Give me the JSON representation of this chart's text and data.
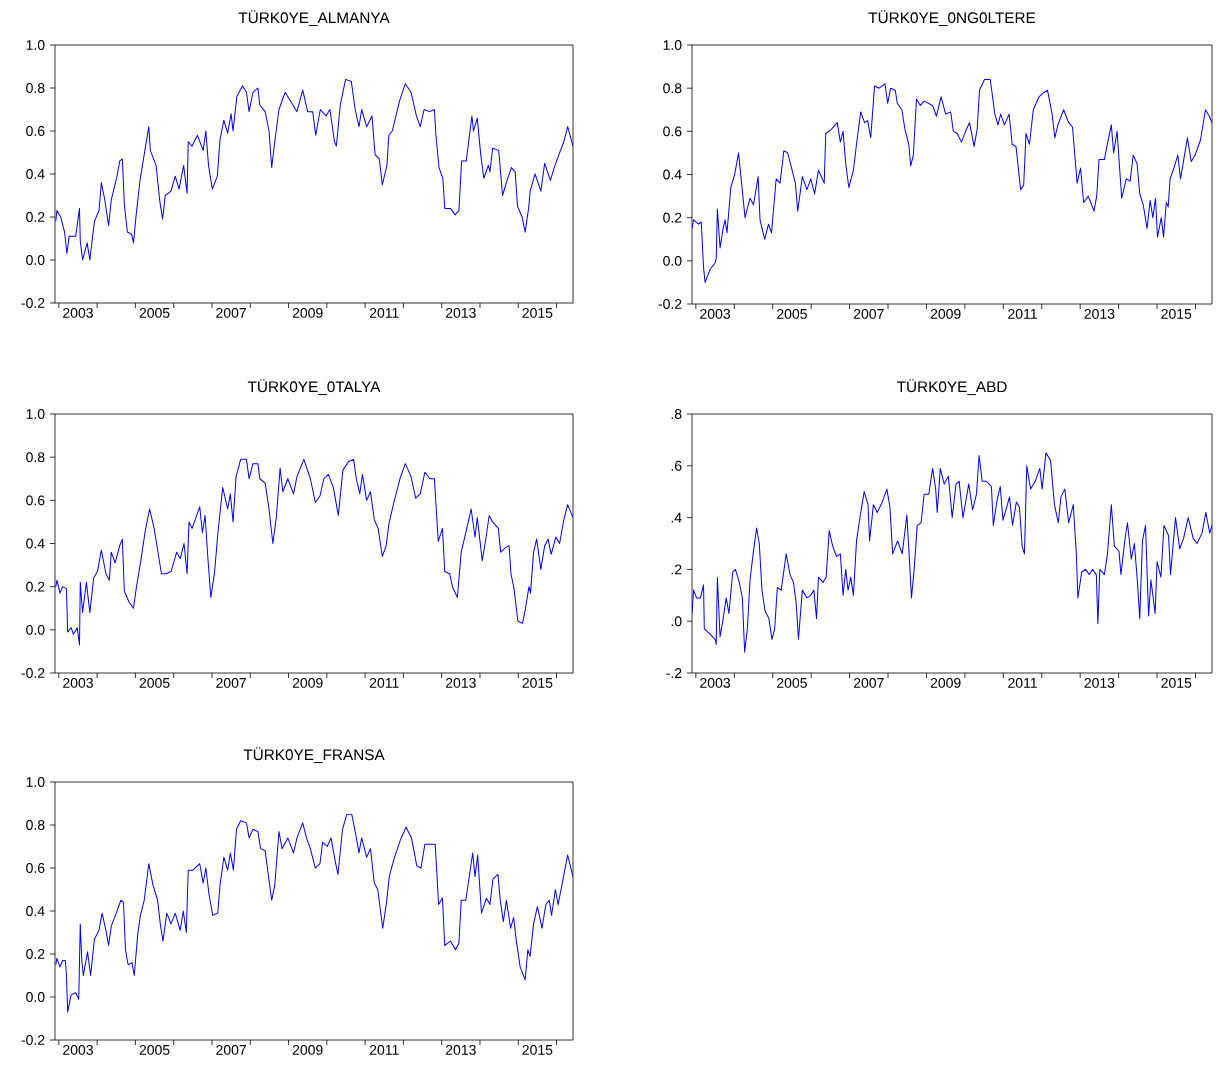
{
  "chart_data": [
    {
      "type": "line",
      "title": "TÜRK0YE_ALMANYA",
      "color": "#0000ff",
      "marker": "none",
      "xlim": [
        2002.9,
        2016.43
      ],
      "ylim": [
        -0.2,
        1.0
      ],
      "xticks": [
        {
          "value": 2003,
          "label": null
        },
        {
          "value": 2003.5,
          "label": "2003"
        },
        {
          "value": 2004,
          "label": null
        },
        {
          "value": 2005,
          "label": null
        },
        {
          "value": 2005.5,
          "label": "2005"
        },
        {
          "value": 2006,
          "label": null
        },
        {
          "value": 2007,
          "label": null
        },
        {
          "value": 2007.5,
          "label": "2007"
        },
        {
          "value": 2008,
          "label": null
        },
        {
          "value": 2009,
          "label": null
        },
        {
          "value": 2009.5,
          "label": "2009"
        },
        {
          "value": 2010,
          "label": null
        },
        {
          "value": 2011,
          "label": null
        },
        {
          "value": 2011.5,
          "label": "2011"
        },
        {
          "value": 2012,
          "label": null
        },
        {
          "value": 2013,
          "label": null
        },
        {
          "value": 2013.5,
          "label": "2013"
        },
        {
          "value": 2014,
          "label": null
        },
        {
          "value": 2015,
          "label": null
        },
        {
          "value": 2015.5,
          "label": "2015"
        },
        {
          "value": 2016,
          "label": null
        }
      ],
      "yticks": [
        {
          "value": -0.2,
          "label": "-0.2"
        },
        {
          "value": 0,
          "label": "0.0"
        },
        {
          "value": 0.2,
          "label": "0.2"
        },
        {
          "value": 0.4,
          "label": "0.4"
        },
        {
          "value": 0.6,
          "label": "0.6"
        },
        {
          "value": 0.8,
          "label": "0.8"
        },
        {
          "value": 1.0,
          "label": "1.0"
        }
      ],
      "x": [
        2002.92,
        2002.95,
        2003.05,
        2003.15,
        2003.21,
        2003.27,
        2003.44,
        2003.54,
        2003.56,
        2003.62,
        2003.74,
        2003.81,
        2003.93,
        2004.05,
        2004.11,
        2004.2,
        2004.3,
        2004.37,
        2004.52,
        2004.59,
        2004.66,
        2004.71,
        2004.79,
        2004.9,
        2004.95,
        2005.02,
        2005.12,
        2005.22,
        2005.35,
        2005.39,
        2005.54,
        2005.64,
        2005.71,
        2005.78,
        2005.93,
        2006.04,
        2006.14,
        2006.26,
        2006.35,
        2006.38,
        2006.48,
        2006.62,
        2006.77,
        2006.84,
        2006.91,
        2007.01,
        2007.14,
        2007.21,
        2007.31,
        2007.41,
        2007.5,
        2007.55,
        2007.65,
        2007.8,
        2007.9,
        2007.97,
        2008.07,
        2008.2,
        2008.25,
        2008.39,
        2008.49,
        2008.56,
        2008.64,
        2008.75,
        2008.91,
        2009.05,
        2009.22,
        2009.37,
        2009.5,
        2009.63,
        2009.71,
        2009.83,
        2009.98,
        2010.08,
        2010.2,
        2010.25,
        2010.35,
        2010.49,
        2010.64,
        2010.74,
        2010.84,
        2010.91,
        2011.04,
        2011.18,
        2011.26,
        2011.37,
        2011.45,
        2011.57,
        2011.62,
        2011.71,
        2011.9,
        2012.05,
        2012.2,
        2012.34,
        2012.44,
        2012.54,
        2012.69,
        2012.81,
        2012.85,
        2012.93,
        2013.03,
        2013.08,
        2013.23,
        2013.35,
        2013.45,
        2013.52,
        2013.64,
        2013.79,
        2013.83,
        2013.93,
        2014.02,
        2014.1,
        2014.22,
        2014.26,
        2014.33,
        2014.49,
        2014.59,
        2014.69,
        2014.82,
        2014.92,
        2014.98,
        2015.1,
        2015.18,
        2015.27,
        2015.31,
        2015.44,
        2015.59,
        2015.69,
        2015.84,
        2015.94,
        2016.04,
        2016.19,
        2016.29,
        2016.43
      ],
      "values": [
        0.18,
        0.23,
        0.2,
        0.13,
        0.03,
        0.11,
        0.11,
        0.24,
        0.09,
        0.0,
        0.08,
        0.0,
        0.18,
        0.23,
        0.36,
        0.28,
        0.16,
        0.28,
        0.39,
        0.46,
        0.47,
        0.26,
        0.13,
        0.12,
        0.08,
        0.21,
        0.37,
        0.48,
        0.62,
        0.51,
        0.44,
        0.27,
        0.19,
        0.3,
        0.32,
        0.39,
        0.33,
        0.44,
        0.31,
        0.55,
        0.53,
        0.58,
        0.51,
        0.6,
        0.44,
        0.33,
        0.39,
        0.56,
        0.65,
        0.59,
        0.68,
        0.6,
        0.76,
        0.81,
        0.78,
        0.69,
        0.78,
        0.8,
        0.72,
        0.69,
        0.6,
        0.43,
        0.55,
        0.7,
        0.78,
        0.74,
        0.69,
        0.79,
        0.69,
        0.69,
        0.58,
        0.7,
        0.67,
        0.7,
        0.55,
        0.53,
        0.72,
        0.84,
        0.83,
        0.7,
        0.62,
        0.7,
        0.62,
        0.67,
        0.49,
        0.47,
        0.35,
        0.44,
        0.58,
        0.6,
        0.74,
        0.82,
        0.78,
        0.67,
        0.62,
        0.7,
        0.69,
        0.7,
        0.58,
        0.43,
        0.38,
        0.24,
        0.24,
        0.21,
        0.23,
        0.46,
        0.46,
        0.67,
        0.6,
        0.66,
        0.49,
        0.38,
        0.44,
        0.41,
        0.52,
        0.51,
        0.3,
        0.36,
        0.43,
        0.41,
        0.25,
        0.2,
        0.13,
        0.24,
        0.32,
        0.4,
        0.32,
        0.45,
        0.37,
        0.43,
        0.48,
        0.55,
        0.62,
        0.53
      ]
    },
    {
      "type": "line",
      "title": "TÜRK0YE_0NG0LTERE",
      "color": "#0000ff",
      "marker": "none",
      "xlim": [
        2002.9,
        2016.43
      ],
      "ylim": [
        -0.2,
        1.0
      ],
      "xticks": [
        {
          "value": 2003,
          "label": null
        },
        {
          "value": 2003.5,
          "label": "2003"
        },
        {
          "value": 2004,
          "label": null
        },
        {
          "value": 2005,
          "label": null
        },
        {
          "value": 2005.5,
          "label": "2005"
        },
        {
          "value": 2006,
          "label": null
        },
        {
          "value": 2007,
          "label": null
        },
        {
          "value": 2007.5,
          "label": "2007"
        },
        {
          "value": 2008,
          "label": null
        },
        {
          "value": 2009,
          "label": null
        },
        {
          "value": 2009.5,
          "label": "2009"
        },
        {
          "value": 2010,
          "label": null
        },
        {
          "value": 2011,
          "label": null
        },
        {
          "value": 2011.5,
          "label": "2011"
        },
        {
          "value": 2012,
          "label": null
        },
        {
          "value": 2013,
          "label": null
        },
        {
          "value": 2013.5,
          "label": "2013"
        },
        {
          "value": 2014,
          "label": null
        },
        {
          "value": 2015,
          "label": null
        },
        {
          "value": 2015.5,
          "label": "2015"
        },
        {
          "value": 2016,
          "label": null
        }
      ],
      "yticks": [
        {
          "value": -0.2,
          "label": "-0.2"
        },
        {
          "value": 0,
          "label": "0.0"
        },
        {
          "value": 0.2,
          "label": "0.2"
        },
        {
          "value": 0.4,
          "label": "0.4"
        },
        {
          "value": 0.6,
          "label": "0.6"
        },
        {
          "value": 0.8,
          "label": "0.8"
        },
        {
          "value": 1.0,
          "label": "1.0"
        }
      ],
      "x": [
        2002.9,
        2002.94,
        2003.07,
        2003.14,
        2003.2,
        2003.24,
        2003.37,
        2003.5,
        2003.53,
        2003.56,
        2003.63,
        2003.71,
        2003.76,
        2003.81,
        2003.91,
        2004.01,
        2004.11,
        2004.19,
        2004.28,
        2004.41,
        2004.5,
        2004.62,
        2004.67,
        2004.79,
        2004.89,
        2004.97,
        2005.09,
        2005.19,
        2005.29,
        2005.39,
        2005.49,
        2005.59,
        2005.65,
        2005.77,
        2005.89,
        2005.99,
        2006.09,
        2006.19,
        2006.34,
        2006.38,
        2006.53,
        2006.68,
        2006.76,
        2006.83,
        2006.9,
        2006.98,
        2007.1,
        2007.18,
        2007.29,
        2007.39,
        2007.47,
        2007.55,
        2007.65,
        2007.77,
        2007.92,
        2007.99,
        2008.07,
        2008.19,
        2008.24,
        2008.36,
        2008.44,
        2008.54,
        2008.59,
        2008.66,
        2008.74,
        2008.84,
        2008.94,
        2009.16,
        2009.26,
        2009.38,
        2009.5,
        2009.63,
        2009.7,
        2009.8,
        2009.91,
        2010.04,
        2010.12,
        2010.24,
        2010.32,
        2010.38,
        2010.51,
        2010.66,
        2010.78,
        2010.86,
        2010.93,
        2011.03,
        2011.15,
        2011.23,
        2011.33,
        2011.45,
        2011.53,
        2011.59,
        2011.68,
        2011.78,
        2011.93,
        2012.05,
        2012.15,
        2012.27,
        2012.34,
        2012.42,
        2012.57,
        2012.7,
        2012.8,
        2012.92,
        2013.01,
        2013.09,
        2013.21,
        2013.36,
        2013.43,
        2013.49,
        2013.63,
        2013.73,
        2013.81,
        2013.87,
        2013.96,
        2014.08,
        2014.2,
        2014.3,
        2014.38,
        2014.48,
        2014.55,
        2014.64,
        2014.74,
        2014.82,
        2014.89,
        2014.96,
        2015.01,
        2015.11,
        2015.17,
        2015.24,
        2015.29,
        2015.34,
        2015.44,
        2015.54,
        2015.61,
        2015.79,
        2015.89,
        2015.99,
        2016.13,
        2016.26,
        2016.36,
        2016.43
      ],
      "values": [
        0.15,
        0.19,
        0.17,
        0.18,
        -0.03,
        -0.1,
        -0.04,
        -0.01,
        0.01,
        0.24,
        0.06,
        0.15,
        0.19,
        0.13,
        0.34,
        0.4,
        0.5,
        0.36,
        0.2,
        0.29,
        0.26,
        0.39,
        0.19,
        0.1,
        0.17,
        0.13,
        0.38,
        0.36,
        0.51,
        0.5,
        0.43,
        0.36,
        0.23,
        0.39,
        0.33,
        0.38,
        0.31,
        0.42,
        0.36,
        0.59,
        0.61,
        0.64,
        0.55,
        0.6,
        0.45,
        0.34,
        0.42,
        0.54,
        0.69,
        0.64,
        0.65,
        0.57,
        0.81,
        0.8,
        0.82,
        0.73,
        0.8,
        0.79,
        0.73,
        0.7,
        0.61,
        0.54,
        0.44,
        0.49,
        0.75,
        0.72,
        0.74,
        0.72,
        0.67,
        0.76,
        0.68,
        0.69,
        0.6,
        0.59,
        0.55,
        0.61,
        0.64,
        0.53,
        0.61,
        0.79,
        0.84,
        0.84,
        0.68,
        0.63,
        0.68,
        0.63,
        0.68,
        0.54,
        0.53,
        0.33,
        0.35,
        0.59,
        0.54,
        0.7,
        0.76,
        0.78,
        0.79,
        0.68,
        0.57,
        0.63,
        0.7,
        0.64,
        0.62,
        0.36,
        0.43,
        0.27,
        0.3,
        0.23,
        0.3,
        0.47,
        0.47,
        0.56,
        0.63,
        0.5,
        0.6,
        0.29,
        0.38,
        0.37,
        0.49,
        0.45,
        0.31,
        0.26,
        0.15,
        0.28,
        0.2,
        0.29,
        0.11,
        0.2,
        0.11,
        0.27,
        0.25,
        0.38,
        0.43,
        0.49,
        0.38,
        0.57,
        0.46,
        0.49,
        0.56,
        0.7,
        0.67,
        0.64
      ]
    },
    {
      "type": "line",
      "title": "TÜRK0YE_0TALYA",
      "color": "#0000ff",
      "marker": "none",
      "xlim": [
        2002.9,
        2016.43
      ],
      "ylim": [
        -0.2,
        1.0
      ],
      "xticks": [
        {
          "value": 2003,
          "label": null
        },
        {
          "value": 2003.5,
          "label": "2003"
        },
        {
          "value": 2004,
          "label": null
        },
        {
          "value": 2005,
          "label": null
        },
        {
          "value": 2005.5,
          "label": "2005"
        },
        {
          "value": 2006,
          "label": null
        },
        {
          "value": 2007,
          "label": null
        },
        {
          "value": 2007.5,
          "label": "2007"
        },
        {
          "value": 2008,
          "label": null
        },
        {
          "value": 2009,
          "label": null
        },
        {
          "value": 2009.5,
          "label": "2009"
        },
        {
          "value": 2010,
          "label": null
        },
        {
          "value": 2011,
          "label": null
        },
        {
          "value": 2011.5,
          "label": "2011"
        },
        {
          "value": 2012,
          "label": null
        },
        {
          "value": 2013,
          "label": null
        },
        {
          "value": 2013.5,
          "label": "2013"
        },
        {
          "value": 2014,
          "label": null
        },
        {
          "value": 2015,
          "label": null
        },
        {
          "value": 2015.5,
          "label": "2015"
        },
        {
          "value": 2016,
          "label": null
        }
      ],
      "yticks": [
        {
          "value": -0.2,
          "label": "-0.2"
        },
        {
          "value": 0,
          "label": "0.0"
        },
        {
          "value": 0.2,
          "label": "0.2"
        },
        {
          "value": 0.4,
          "label": "0.4"
        },
        {
          "value": 0.6,
          "label": "0.6"
        },
        {
          "value": 0.8,
          "label": "0.8"
        },
        {
          "value": 1.0,
          "label": "1.0"
        }
      ],
      "x": [
        2002.92,
        2002.95,
        2003.03,
        2003.1,
        2003.2,
        2003.23,
        2003.32,
        2003.38,
        2003.48,
        2003.54,
        2003.56,
        2003.62,
        2003.72,
        2003.81,
        2003.91,
        2004.01,
        2004.11,
        2004.23,
        2004.32,
        2004.37,
        2004.47,
        2004.59,
        2004.66,
        2004.71,
        2004.83,
        2004.95,
        2005.02,
        2005.15,
        2005.25,
        2005.37,
        2005.49,
        2005.58,
        2005.68,
        2005.8,
        2005.93,
        2006.08,
        2006.17,
        2006.27,
        2006.35,
        2006.4,
        2006.48,
        2006.58,
        2006.68,
        2006.75,
        2006.82,
        2006.89,
        2006.97,
        2007.07,
        2007.15,
        2007.28,
        2007.41,
        2007.48,
        2007.55,
        2007.63,
        2007.75,
        2007.9,
        2007.97,
        2008.07,
        2008.2,
        2008.25,
        2008.39,
        2008.49,
        2008.59,
        2008.68,
        2008.78,
        2008.85,
        2008.98,
        2009.13,
        2009.22,
        2009.4,
        2009.57,
        2009.7,
        2009.82,
        2009.92,
        2010.04,
        2010.17,
        2010.3,
        2010.42,
        2010.57,
        2010.7,
        2010.77,
        2010.86,
        2010.93,
        2011.04,
        2011.14,
        2011.24,
        2011.34,
        2011.45,
        2011.55,
        2011.62,
        2011.75,
        2011.91,
        2012.05,
        2012.2,
        2012.32,
        2012.44,
        2012.56,
        2012.69,
        2012.81,
        2012.91,
        2013.02,
        2013.08,
        2013.21,
        2013.28,
        2013.41,
        2013.51,
        2013.63,
        2013.77,
        2013.87,
        2013.93,
        2014.06,
        2014.16,
        2014.24,
        2014.33,
        2014.48,
        2014.54,
        2014.66,
        2014.76,
        2014.81,
        2014.89,
        2014.99,
        2015.11,
        2015.18,
        2015.28,
        2015.32,
        2015.4,
        2015.48,
        2015.59,
        2015.69,
        2015.78,
        2015.86,
        2015.98,
        2016.08,
        2016.19,
        2016.29,
        2016.43
      ],
      "values": [
        0.2,
        0.23,
        0.17,
        0.2,
        0.19,
        -0.01,
        0.01,
        -0.02,
        0.01,
        -0.07,
        0.22,
        0.08,
        0.22,
        0.08,
        0.24,
        0.27,
        0.37,
        0.26,
        0.23,
        0.36,
        0.31,
        0.39,
        0.42,
        0.18,
        0.13,
        0.1,
        0.19,
        0.33,
        0.45,
        0.56,
        0.47,
        0.37,
        0.26,
        0.26,
        0.27,
        0.36,
        0.33,
        0.4,
        0.26,
        0.5,
        0.47,
        0.52,
        0.57,
        0.45,
        0.53,
        0.34,
        0.15,
        0.27,
        0.44,
        0.66,
        0.56,
        0.63,
        0.5,
        0.71,
        0.79,
        0.79,
        0.7,
        0.77,
        0.77,
        0.7,
        0.68,
        0.56,
        0.4,
        0.52,
        0.75,
        0.64,
        0.7,
        0.63,
        0.71,
        0.79,
        0.7,
        0.59,
        0.62,
        0.7,
        0.72,
        0.66,
        0.53,
        0.74,
        0.78,
        0.79,
        0.7,
        0.63,
        0.72,
        0.6,
        0.64,
        0.51,
        0.47,
        0.34,
        0.39,
        0.49,
        0.59,
        0.7,
        0.77,
        0.71,
        0.61,
        0.63,
        0.73,
        0.7,
        0.7,
        0.41,
        0.47,
        0.27,
        0.26,
        0.2,
        0.15,
        0.36,
        0.45,
        0.56,
        0.43,
        0.52,
        0.32,
        0.43,
        0.53,
        0.5,
        0.47,
        0.36,
        0.38,
        0.39,
        0.26,
        0.19,
        0.04,
        0.03,
        0.09,
        0.2,
        0.17,
        0.36,
        0.42,
        0.28,
        0.39,
        0.42,
        0.35,
        0.43,
        0.4,
        0.51,
        0.58,
        0.52
      ]
    },
    {
      "type": "line",
      "title": "TÜRK0YE_ABD",
      "color": "#0000ff",
      "marker": "none",
      "xlim": [
        2002.9,
        2016.43
      ],
      "ylim": [
        -0.2,
        0.8
      ],
      "xticks": [
        {
          "value": 2003,
          "label": null
        },
        {
          "value": 2003.5,
          "label": "2003"
        },
        {
          "value": 2004,
          "label": null
        },
        {
          "value": 2005,
          "label": null
        },
        {
          "value": 2005.5,
          "label": "2005"
        },
        {
          "value": 2006,
          "label": null
        },
        {
          "value": 2007,
          "label": null
        },
        {
          "value": 2007.5,
          "label": "2007"
        },
        {
          "value": 2008,
          "label": null
        },
        {
          "value": 2009,
          "label": null
        },
        {
          "value": 2009.5,
          "label": "2009"
        },
        {
          "value": 2010,
          "label": null
        },
        {
          "value": 2011,
          "label": null
        },
        {
          "value": 2011.5,
          "label": "2011"
        },
        {
          "value": 2012,
          "label": null
        },
        {
          "value": 2013,
          "label": null
        },
        {
          "value": 2013.5,
          "label": "2013"
        },
        {
          "value": 2014,
          "label": null
        },
        {
          "value": 2015,
          "label": null
        },
        {
          "value": 2015.5,
          "label": "2015"
        },
        {
          "value": 2016,
          "label": null
        }
      ],
      "yticks": [
        {
          "value": -0.2,
          "label": "-.2"
        },
        {
          "value": 0,
          "label": ".0"
        },
        {
          "value": 0.2,
          "label": ".2"
        },
        {
          "value": 0.4,
          "label": ".4"
        },
        {
          "value": 0.6,
          "label": ".6"
        },
        {
          "value": 0.8,
          "label": ".8"
        }
      ],
      "x": [
        2002.9,
        2002.94,
        2003.02,
        2003.12,
        2003.2,
        2003.22,
        2003.37,
        2003.5,
        2003.53,
        2003.56,
        2003.63,
        2003.71,
        2003.79,
        2003.86,
        2003.96,
        2004.03,
        2004.13,
        2004.21,
        2004.27,
        2004.34,
        2004.41,
        2004.49,
        2004.58,
        2004.65,
        2004.72,
        2004.8,
        2004.9,
        2004.98,
        2005.05,
        2005.12,
        2005.22,
        2005.35,
        2005.45,
        2005.54,
        2005.61,
        2005.67,
        2005.77,
        2005.89,
        2005.99,
        2006.07,
        2006.14,
        2006.19,
        2006.31,
        2006.39,
        2006.47,
        2006.56,
        2006.66,
        2006.76,
        2006.83,
        2006.9,
        2006.96,
        2007.03,
        2007.1,
        2007.18,
        2007.28,
        2007.38,
        2007.48,
        2007.52,
        2007.62,
        2007.72,
        2007.85,
        2007.97,
        2008.05,
        2008.12,
        2008.25,
        2008.37,
        2008.49,
        2008.56,
        2008.61,
        2008.68,
        2008.76,
        2008.86,
        2008.94,
        2009.06,
        2009.16,
        2009.24,
        2009.28,
        2009.36,
        2009.46,
        2009.57,
        2009.67,
        2009.77,
        2009.85,
        2009.95,
        2010.1,
        2010.2,
        2010.3,
        2010.37,
        2010.45,
        2010.56,
        2010.69,
        2010.74,
        2010.84,
        2010.92,
        2010.99,
        2011.09,
        2011.16,
        2011.24,
        2011.34,
        2011.42,
        2011.49,
        2011.55,
        2011.61,
        2011.71,
        2011.83,
        2011.95,
        2012.01,
        2012.11,
        2012.23,
        2012.33,
        2012.43,
        2012.5,
        2012.6,
        2012.7,
        2012.82,
        2012.9,
        2012.94,
        2013.04,
        2013.14,
        2013.24,
        2013.32,
        2013.42,
        2013.46,
        2013.51,
        2013.63,
        2013.71,
        2013.81,
        2013.89,
        2014.01,
        2014.06,
        2014.16,
        2014.23,
        2014.33,
        2014.41,
        2014.49,
        2014.55,
        2014.62,
        2014.7,
        2014.78,
        2014.84,
        2014.95,
        2015.0,
        2015.1,
        2015.18,
        2015.3,
        2015.35,
        2015.48,
        2015.59,
        2015.69,
        2015.81,
        2015.94,
        2016.04,
        2016.17,
        2016.27,
        2016.37,
        2016.43
      ],
      "values": [
        0.03,
        0.12,
        0.09,
        0.09,
        0.14,
        -0.03,
        -0.05,
        -0.07,
        -0.09,
        0.17,
        -0.06,
        0.01,
        0.09,
        0.03,
        0.19,
        0.2,
        0.15,
        0.09,
        -0.12,
        -0.03,
        0.16,
        0.26,
        0.36,
        0.3,
        0.12,
        0.04,
        0.01,
        -0.07,
        -0.03,
        0.13,
        0.12,
        0.26,
        0.18,
        0.15,
        0.07,
        -0.07,
        0.12,
        0.09,
        0.1,
        0.12,
        0.01,
        0.17,
        0.15,
        0.17,
        0.35,
        0.29,
        0.25,
        0.26,
        0.1,
        0.2,
        0.12,
        0.17,
        0.1,
        0.31,
        0.41,
        0.5,
        0.45,
        0.31,
        0.45,
        0.42,
        0.46,
        0.51,
        0.44,
        0.26,
        0.31,
        0.26,
        0.41,
        0.23,
        0.09,
        0.2,
        0.37,
        0.38,
        0.49,
        0.49,
        0.59,
        0.51,
        0.42,
        0.59,
        0.53,
        0.56,
        0.4,
        0.53,
        0.54,
        0.4,
        0.53,
        0.43,
        0.49,
        0.64,
        0.54,
        0.54,
        0.52,
        0.37,
        0.47,
        0.52,
        0.39,
        0.44,
        0.48,
        0.37,
        0.46,
        0.44,
        0.29,
        0.26,
        0.6,
        0.51,
        0.54,
        0.59,
        0.51,
        0.65,
        0.62,
        0.45,
        0.38,
        0.48,
        0.51,
        0.38,
        0.45,
        0.26,
        0.09,
        0.19,
        0.2,
        0.18,
        0.2,
        0.18,
        -0.01,
        0.2,
        0.18,
        0.26,
        0.45,
        0.29,
        0.27,
        0.18,
        0.31,
        0.38,
        0.24,
        0.3,
        0.15,
        0.01,
        0.31,
        0.37,
        0.02,
        0.16,
        0.03,
        0.23,
        0.17,
        0.37,
        0.33,
        0.18,
        0.4,
        0.28,
        0.32,
        0.4,
        0.32,
        0.3,
        0.34,
        0.42,
        0.34,
        0.37
      ]
    },
    {
      "type": "line",
      "title": "TÜRK0YE_FRANSA",
      "color": "#0000ff",
      "marker": "none",
      "xlim": [
        2002.9,
        2016.43
      ],
      "ylim": [
        -0.2,
        1.0
      ],
      "xticks": [
        {
          "value": 2003,
          "label": null
        },
        {
          "value": 2003.5,
          "label": "2003"
        },
        {
          "value": 2004,
          "label": null
        },
        {
          "value": 2005,
          "label": null
        },
        {
          "value": 2005.5,
          "label": "2005"
        },
        {
          "value": 2006,
          "label": null
        },
        {
          "value": 2007,
          "label": null
        },
        {
          "value": 2007.5,
          "label": "2007"
        },
        {
          "value": 2008,
          "label": null
        },
        {
          "value": 2009,
          "label": null
        },
        {
          "value": 2009.5,
          "label": "2009"
        },
        {
          "value": 2010,
          "label": null
        },
        {
          "value": 2011,
          "label": null
        },
        {
          "value": 2011.5,
          "label": "2011"
        },
        {
          "value": 2012,
          "label": null
        },
        {
          "value": 2013,
          "label": null
        },
        {
          "value": 2013.5,
          "label": "2013"
        },
        {
          "value": 2014,
          "label": null
        },
        {
          "value": 2015,
          "label": null
        },
        {
          "value": 2015.5,
          "label": "2015"
        },
        {
          "value": 2016,
          "label": null
        }
      ],
      "yticks": [
        {
          "value": -0.2,
          "label": "-0.2"
        },
        {
          "value": 0,
          "label": "0.0"
        },
        {
          "value": 0.2,
          "label": "0.2"
        },
        {
          "value": 0.4,
          "label": "0.4"
        },
        {
          "value": 0.6,
          "label": "0.6"
        },
        {
          "value": 0.8,
          "label": "0.8"
        },
        {
          "value": 1.0,
          "label": "1.0"
        }
      ],
      "x": [
        2002.92,
        2002.95,
        2003.03,
        2003.1,
        2003.17,
        2003.2,
        2003.23,
        2003.32,
        2003.44,
        2003.52,
        2003.56,
        2003.6,
        2003.64,
        2003.75,
        2003.83,
        2003.93,
        2004.05,
        2004.13,
        2004.23,
        2004.3,
        2004.37,
        2004.5,
        2004.62,
        2004.69,
        2004.74,
        2004.81,
        2004.91,
        2004.97,
        2005.06,
        2005.13,
        2005.23,
        2005.35,
        2005.46,
        2005.58,
        2005.65,
        2005.72,
        2005.82,
        2005.93,
        2006.04,
        2006.17,
        2006.25,
        2006.33,
        2006.38,
        2006.5,
        2006.68,
        2006.77,
        2006.84,
        2006.92,
        2007.02,
        2007.15,
        2007.21,
        2007.31,
        2007.41,
        2007.48,
        2007.56,
        2007.64,
        2007.75,
        2007.9,
        2007.97,
        2008.07,
        2008.2,
        2008.27,
        2008.39,
        2008.47,
        2008.56,
        2008.64,
        2008.75,
        2008.83,
        2008.98,
        2009.13,
        2009.22,
        2009.37,
        2009.47,
        2009.57,
        2009.7,
        2009.82,
        2009.89,
        2010.01,
        2010.11,
        2010.21,
        2010.29,
        2010.41,
        2010.52,
        2010.65,
        2010.74,
        2010.84,
        2010.91,
        2011.04,
        2011.14,
        2011.24,
        2011.33,
        2011.46,
        2011.56,
        2011.63,
        2011.75,
        2011.92,
        2012.07,
        2012.21,
        2012.35,
        2012.46,
        2012.56,
        2012.71,
        2012.83,
        2012.92,
        2013.02,
        2013.08,
        2013.23,
        2013.36,
        2013.45,
        2013.51,
        2013.63,
        2013.81,
        2013.87,
        2013.94,
        2014.04,
        2014.17,
        2014.26,
        2014.34,
        2014.47,
        2014.53,
        2014.61,
        2014.69,
        2014.8,
        2014.88,
        2014.95,
        2015.05,
        2015.18,
        2015.25,
        2015.31,
        2015.4,
        2015.5,
        2015.62,
        2015.72,
        2015.81,
        2015.87,
        2015.97,
        2016.04,
        2016.14,
        2016.29,
        2016.43
      ],
      "values": [
        0.15,
        0.18,
        0.14,
        0.17,
        0.17,
        0.1,
        -0.07,
        0.01,
        0.02,
        -0.01,
        0.34,
        0.17,
        0.1,
        0.21,
        0.1,
        0.27,
        0.31,
        0.39,
        0.31,
        0.24,
        0.33,
        0.39,
        0.45,
        0.44,
        0.22,
        0.15,
        0.16,
        0.1,
        0.29,
        0.38,
        0.45,
        0.62,
        0.52,
        0.45,
        0.34,
        0.26,
        0.39,
        0.34,
        0.39,
        0.31,
        0.4,
        0.3,
        0.59,
        0.59,
        0.62,
        0.53,
        0.6,
        0.48,
        0.38,
        0.39,
        0.52,
        0.65,
        0.59,
        0.67,
        0.59,
        0.78,
        0.82,
        0.81,
        0.74,
        0.78,
        0.77,
        0.69,
        0.68,
        0.57,
        0.45,
        0.52,
        0.77,
        0.69,
        0.74,
        0.67,
        0.74,
        0.81,
        0.74,
        0.69,
        0.6,
        0.62,
        0.72,
        0.7,
        0.74,
        0.64,
        0.57,
        0.78,
        0.85,
        0.85,
        0.77,
        0.67,
        0.74,
        0.65,
        0.69,
        0.53,
        0.5,
        0.32,
        0.44,
        0.56,
        0.64,
        0.73,
        0.79,
        0.74,
        0.61,
        0.6,
        0.71,
        0.71,
        0.71,
        0.43,
        0.46,
        0.24,
        0.26,
        0.22,
        0.25,
        0.45,
        0.45,
        0.67,
        0.56,
        0.66,
        0.39,
        0.46,
        0.43,
        0.55,
        0.57,
        0.45,
        0.35,
        0.45,
        0.32,
        0.37,
        0.26,
        0.14,
        0.08,
        0.22,
        0.19,
        0.34,
        0.42,
        0.32,
        0.43,
        0.45,
        0.38,
        0.5,
        0.43,
        0.52,
        0.66,
        0.56
      ]
    }
  ]
}
